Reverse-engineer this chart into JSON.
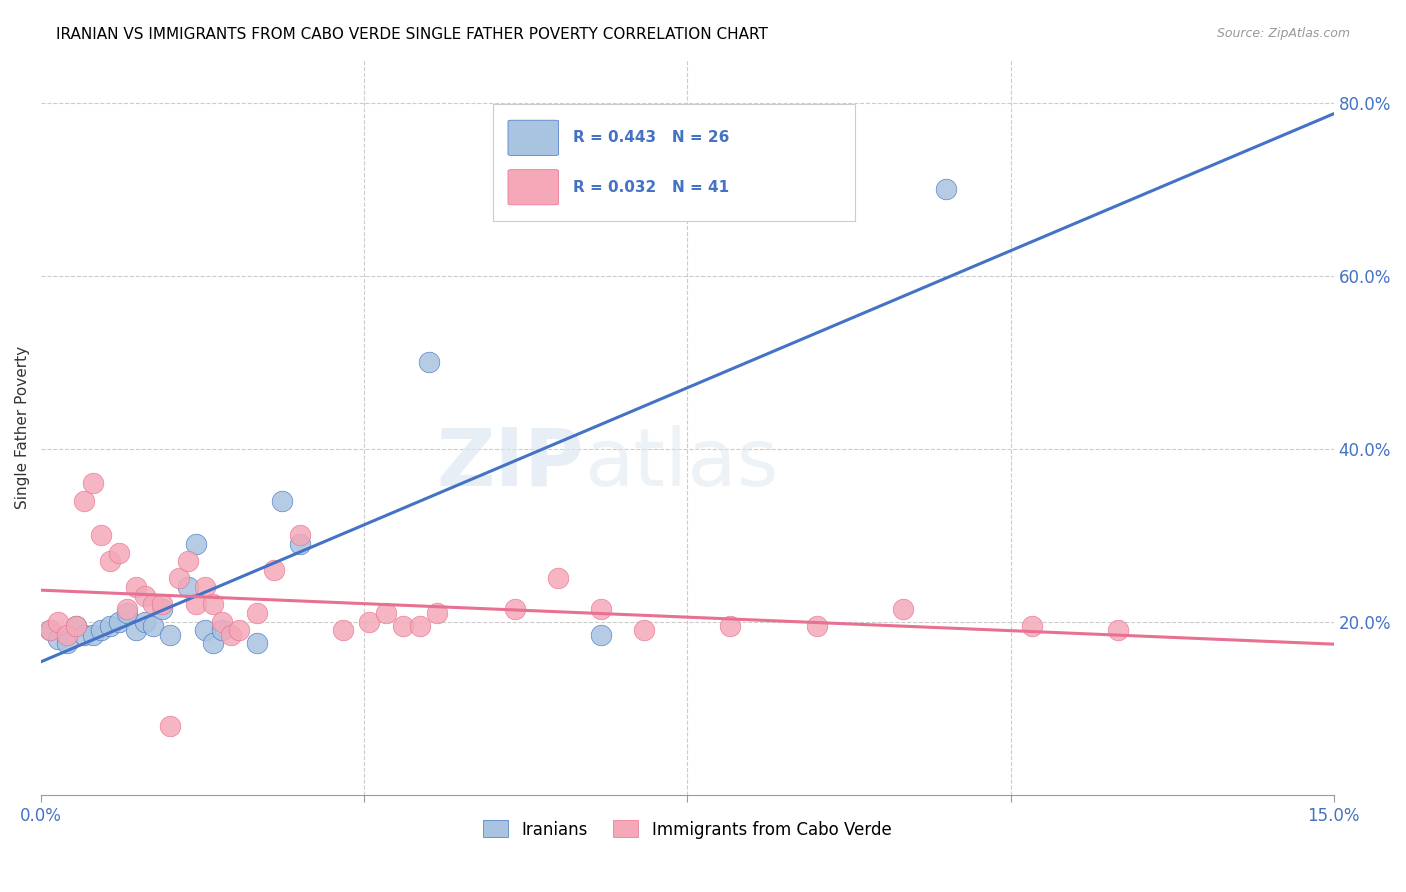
{
  "title": "IRANIAN VS IMMIGRANTS FROM CABO VERDE SINGLE FATHER POVERTY CORRELATION CHART",
  "source": "Source: ZipAtlas.com",
  "ylabel": "Single Father Poverty",
  "right_yticks": [
    "80.0%",
    "60.0%",
    "40.0%",
    "20.0%"
  ],
  "right_ytick_vals": [
    0.8,
    0.6,
    0.4,
    0.2
  ],
  "legend_blue_label": "R = 0.443   N = 26",
  "legend_pink_label": "R = 0.032   N = 41",
  "legend_bottom_blue": "Iranians",
  "legend_bottom_pink": "Immigrants from Cabo Verde",
  "blue_color": "#a8c4e0",
  "pink_color": "#f4a8b8",
  "line_blue": "#4472C4",
  "line_pink": "#E87090",
  "iranians_x": [
    0.001,
    0.002,
    0.003,
    0.004,
    0.005,
    0.006,
    0.007,
    0.008,
    0.009,
    0.01,
    0.011,
    0.012,
    0.013,
    0.014,
    0.015,
    0.017,
    0.018,
    0.019,
    0.02,
    0.021,
    0.025,
    0.028,
    0.03,
    0.045,
    0.065,
    0.105
  ],
  "iranians_y": [
    0.19,
    0.18,
    0.175,
    0.195,
    0.185,
    0.185,
    0.19,
    0.195,
    0.2,
    0.21,
    0.19,
    0.2,
    0.195,
    0.215,
    0.185,
    0.24,
    0.29,
    0.19,
    0.175,
    0.19,
    0.175,
    0.34,
    0.29,
    0.5,
    0.185,
    0.7
  ],
  "caboverde_x": [
    0.001,
    0.002,
    0.003,
    0.004,
    0.005,
    0.006,
    0.007,
    0.008,
    0.009,
    0.01,
    0.011,
    0.012,
    0.013,
    0.014,
    0.015,
    0.016,
    0.017,
    0.018,
    0.019,
    0.02,
    0.021,
    0.022,
    0.023,
    0.025,
    0.027,
    0.03,
    0.035,
    0.038,
    0.04,
    0.042,
    0.044,
    0.046,
    0.055,
    0.06,
    0.065,
    0.07,
    0.08,
    0.09,
    0.1,
    0.115,
    0.125
  ],
  "caboverde_y": [
    0.19,
    0.2,
    0.185,
    0.195,
    0.34,
    0.36,
    0.3,
    0.27,
    0.28,
    0.215,
    0.24,
    0.23,
    0.22,
    0.22,
    0.08,
    0.25,
    0.27,
    0.22,
    0.24,
    0.22,
    0.2,
    0.185,
    0.19,
    0.21,
    0.26,
    0.3,
    0.19,
    0.2,
    0.21,
    0.195,
    0.195,
    0.21,
    0.215,
    0.25,
    0.215,
    0.19,
    0.195,
    0.195,
    0.215,
    0.195,
    0.19
  ],
  "xmin": 0.0,
  "xmax": 0.15,
  "ymin": 0.0,
  "ymax": 0.85
}
